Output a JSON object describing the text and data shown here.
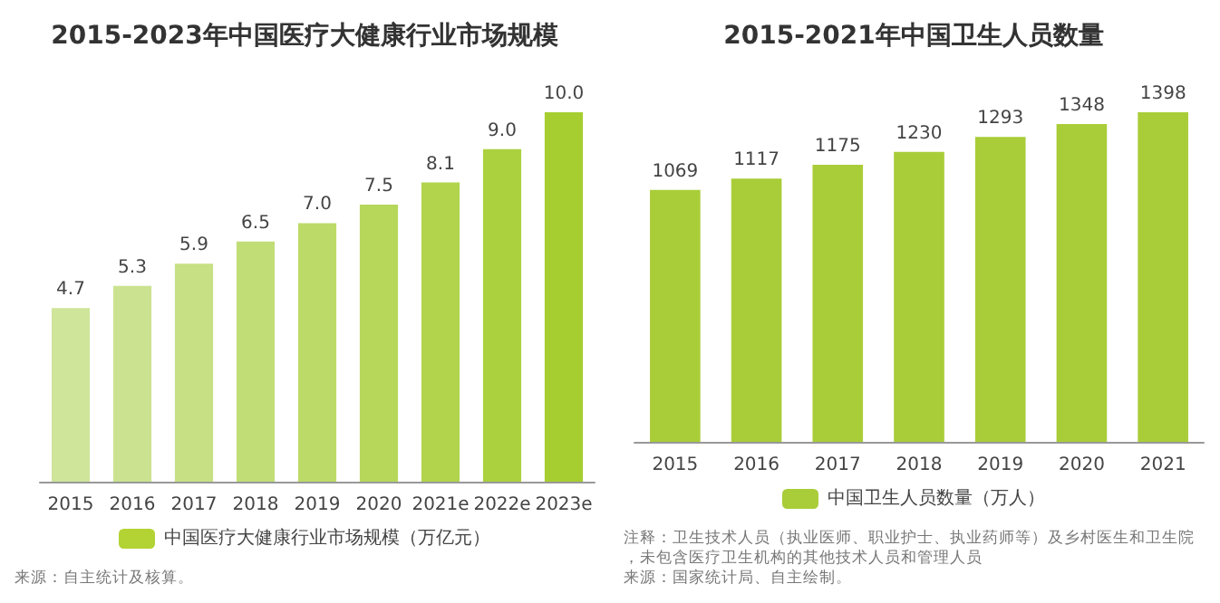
{
  "chart_data": [
    {
      "type": "bar",
      "title": "2015-2023年中国医疗大健康行业市场规模",
      "categories": [
        "2015",
        "2016",
        "2017",
        "2018",
        "2019",
        "2020",
        "2021e",
        "2022e",
        "2023e"
      ],
      "series": [
        {
          "name": "中国医疗大健康行业市场规模（万亿元）",
          "color": "#b3d334",
          "colors": [
            "#cfe59a",
            "#cbe390",
            "#c6e083",
            "#c1dd76",
            "#bcda68",
            "#b6d75a",
            "#b1d44c",
            "#abd13e",
            "#a6ce30"
          ],
          "values": [
            4.7,
            5.3,
            5.9,
            6.5,
            7.0,
            7.5,
            8.1,
            9.0,
            10.0
          ],
          "value_labels": [
            "4.7",
            "5.3",
            "5.9",
            "6.5",
            "7.0",
            "7.5",
            "8.1",
            "9.0",
            "10.0"
          ]
        }
      ],
      "legend": "bottom",
      "annotations": [
        "来源：自主统计及核算。"
      ]
    },
    {
      "type": "bar",
      "title": "2015-2021年中国卫生人员数量",
      "categories": [
        "2015",
        "2016",
        "2017",
        "2018",
        "2019",
        "2020",
        "2021"
      ],
      "series": [
        {
          "name": "中国卫生人员数量（万人）",
          "color": "#a9cd38",
          "values": [
            1069,
            1117,
            1175,
            1230,
            1293,
            1348,
            1398
          ]
        }
      ],
      "data_labels": true,
      "legend": "bottom",
      "annotations": [
        "注释：卫生技术人员（执业医师、职业护士、执业药师等）及乡村医生和卫生院，未包含医疗卫生机构的其他技术人员和管理人员",
        "来源：国家统计局、自主绘制。"
      ]
    }
  ]
}
